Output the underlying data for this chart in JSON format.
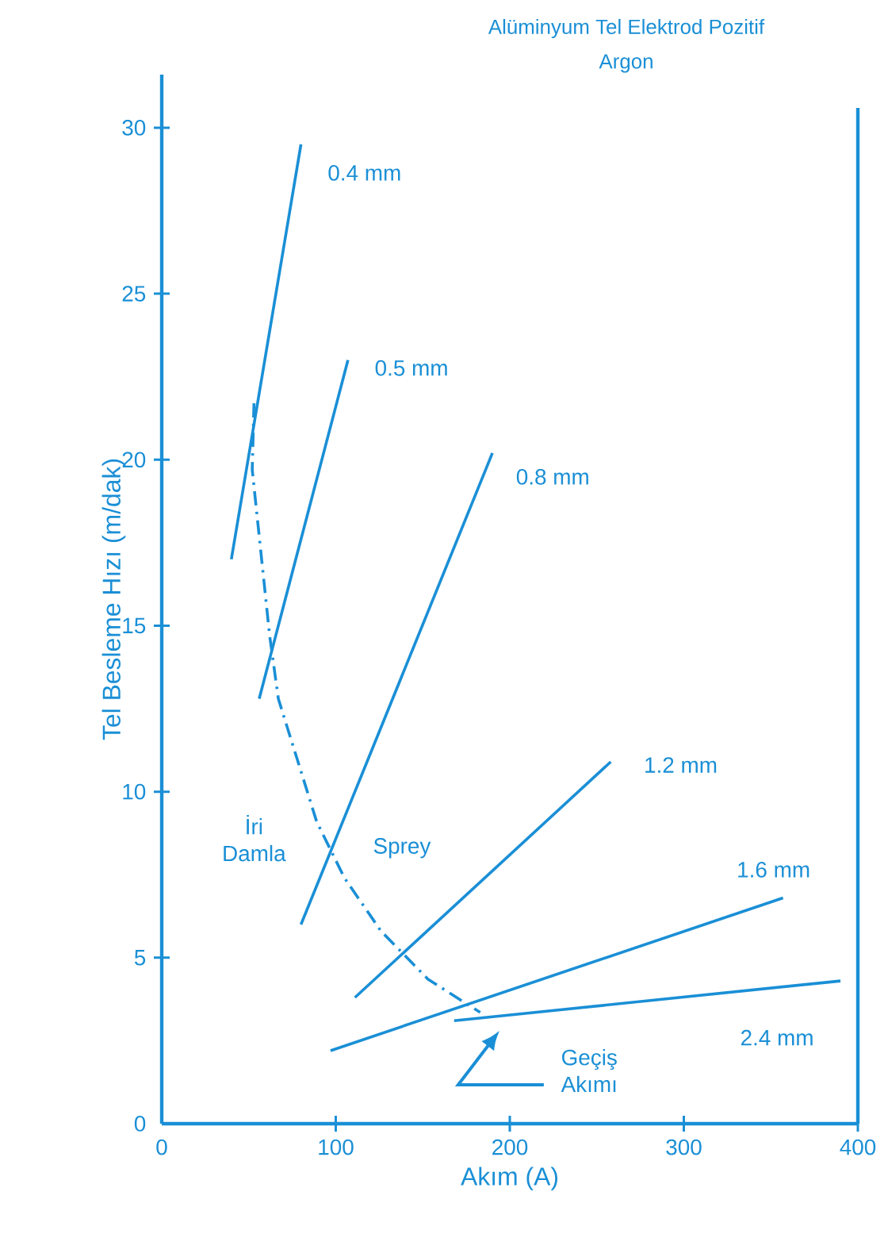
{
  "chart_data": {
    "type": "line",
    "title": "Alüminyum Tel Elektrod Pozitif",
    "subtitle": "Argon",
    "xlabel": "Akım (A)",
    "ylabel": "Tel Besleme Hızı (m/dak)",
    "xlim": [
      0,
      400
    ],
    "ylim": [
      0,
      31.6
    ],
    "xticks": [
      0,
      100,
      200,
      300,
      400
    ],
    "yticks": [
      0,
      5,
      10,
      15,
      20,
      25,
      30
    ],
    "series": [
      {
        "name": "0.4 mm",
        "color": "#1a8fd6",
        "x": [
          40,
          80
        ],
        "values": [
          17,
          29.5
        ]
      },
      {
        "name": "0.5 mm",
        "color": "#1a8fd6",
        "x": [
          56,
          107
        ],
        "values": [
          12.8,
          23
        ]
      },
      {
        "name": "0.8 mm",
        "color": "#1a8fd6",
        "x": [
          80,
          190
        ],
        "values": [
          6,
          20.2
        ]
      },
      {
        "name": "1.2 mm",
        "color": "#1a8fd6",
        "x": [
          111,
          258
        ],
        "values": [
          3.8,
          10.9
        ]
      },
      {
        "name": "1.6 mm",
        "color": "#1a8fd6",
        "x": [
          97,
          357
        ],
        "values": [
          2.2,
          6.8
        ]
      },
      {
        "name": "2.4 mm",
        "color": "#1a8fd6",
        "x": [
          168,
          390
        ],
        "values": [
          3.1,
          4.3
        ]
      },
      {
        "color": "#1a8fd6",
        "line_style": "dashed",
        "x": [
          53,
          52,
          62,
          67,
          89,
          105,
          126,
          153,
          183
        ],
        "values": [
          21.7,
          19.7,
          14.7,
          12.8,
          9.1,
          7.4,
          5.8,
          4.35,
          3.35
        ]
      }
    ],
    "annotations": [
      "İri Damla",
      "Sprey",
      "Geçiş Akımı"
    ]
  }
}
